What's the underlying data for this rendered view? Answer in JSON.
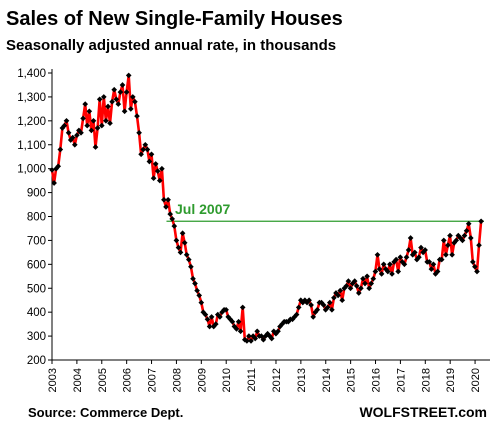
{
  "chart_data": {
    "type": "line",
    "title": "Sales of New Single-Family Houses",
    "subtitle": "Seasonally adjusted annual rate, in thousands",
    "xlabel": "",
    "ylabel": "",
    "ylim": [
      200,
      1400
    ],
    "yticks": [
      "200",
      "300",
      "400",
      "500",
      "600",
      "700",
      "800",
      "900",
      "1,000",
      "1,100",
      "1,200",
      "1,300",
      "1,400"
    ],
    "xtick_labels": [
      "2003",
      "2004",
      "2005",
      "2006",
      "2007",
      "2008",
      "2009",
      "2010",
      "2011",
      "2012",
      "2013",
      "2014",
      "2015",
      "2016",
      "2017",
      "2018",
      "2019",
      "2020"
    ],
    "x_start": 2003.0,
    "x_step": 0.0833,
    "grid": false,
    "series": [
      {
        "color": "#ff0000",
        "marker_color": "#000000",
        "values": [
          995,
          940,
          1000,
          1010,
          1080,
          1170,
          1180,
          1200,
          1150,
          1120,
          1130,
          1100,
          1140,
          1160,
          1150,
          1210,
          1270,
          1180,
          1240,
          1160,
          1200,
          1090,
          1170,
          1290,
          1180,
          1300,
          1200,
          1260,
          1190,
          1280,
          1330,
          1290,
          1270,
          1320,
          1350,
          1240,
          1320,
          1390,
          1250,
          1300,
          1280,
          1220,
          1150,
          1060,
          1080,
          1100,
          1080,
          1030,
          1060,
          960,
          1020,
          990,
          950,
          1000,
          870,
          840,
          870,
          810,
          790,
          760,
          700,
          670,
          650,
          730,
          690,
          640,
          620,
          590,
          540,
          520,
          490,
          470,
          440,
          400,
          390,
          370,
          340,
          380,
          340,
          350,
          390,
          380,
          400,
          410,
          410,
          380,
          370,
          360,
          340,
          330,
          360,
          320,
          420,
          285,
          280,
          300,
          280,
          300,
          290,
          320,
          300,
          300,
          285,
          300,
          310,
          300,
          290,
          320,
          310,
          320,
          340,
          350,
          360,
          360,
          360,
          370,
          370,
          380,
          390,
          420,
          450,
          440,
          450,
          440,
          450,
          430,
          380,
          400,
          410,
          440,
          440,
          430,
          410,
          420,
          440,
          410,
          460,
          480,
          470,
          490,
          450,
          500,
          510,
          530,
          500,
          520,
          530,
          510,
          480,
          500,
          540,
          520,
          550,
          500,
          520,
          540,
          570,
          640,
          580,
          560,
          600,
          580,
          570,
          600,
          560,
          610,
          620,
          570,
          630,
          610,
          600,
          630,
          660,
          710,
          640,
          650,
          620,
          630,
          670,
          650,
          660,
          610,
          610,
          580,
          600,
          560,
          570,
          620,
          620,
          700,
          640,
          680,
          720,
          640,
          690,
          700,
          720,
          710,
          700,
          720,
          740,
          770,
          710,
          610,
          590,
          570,
          680,
          780
        ]
      }
    ],
    "reference_line": {
      "value": 780,
      "color": "#2e9b2e",
      "from_x": 2007.6
    },
    "annotation": {
      "text": "Jul 2007",
      "color": "#2e9b2e"
    }
  },
  "footer": {
    "source": "Source: Commerce Dept.",
    "brand": "WOLFSTREET.com"
  }
}
